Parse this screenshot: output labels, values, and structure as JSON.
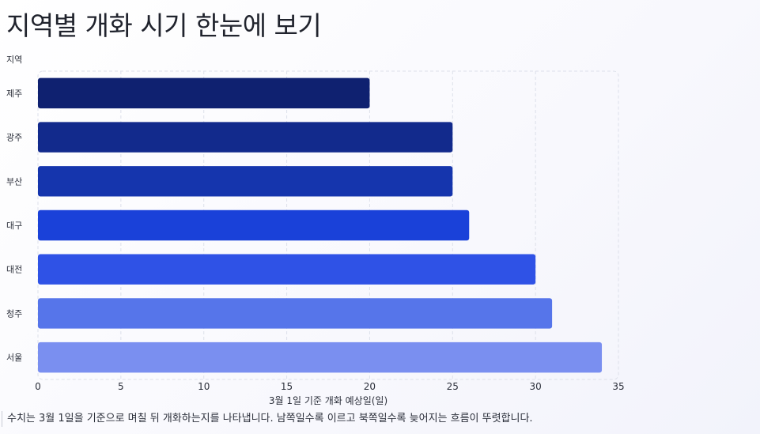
{
  "title": "지역별 개화 시기 한눈에 보기",
  "caption": "수치는 3월 1일을 기준으로 며칠 뒤 개화하는지를 나타냅니다. 남쪽일수록 이르고 북쪽일수록 늦어지는 흐름이 뚜렷합니다.",
  "chart_data": {
    "type": "bar",
    "orientation": "horizontal",
    "categories": [
      "제주",
      "광주",
      "부산",
      "대구",
      "대전",
      "청주",
      "서울"
    ],
    "values": [
      20,
      25,
      25,
      26,
      30,
      31,
      34
    ],
    "xlabel": "3월 1일 기준 개화 예상일(일)",
    "ylabel": "지역",
    "xlim": [
      0,
      35
    ],
    "xticks": [
      0,
      5,
      10,
      15,
      20,
      25,
      30,
      35
    ],
    "grid": true,
    "colors": [
      "#0f2170",
      "#122a8c",
      "#1535ad",
      "#1a41d9",
      "#2f52e6",
      "#5675ea",
      "#7a8ff0"
    ]
  }
}
